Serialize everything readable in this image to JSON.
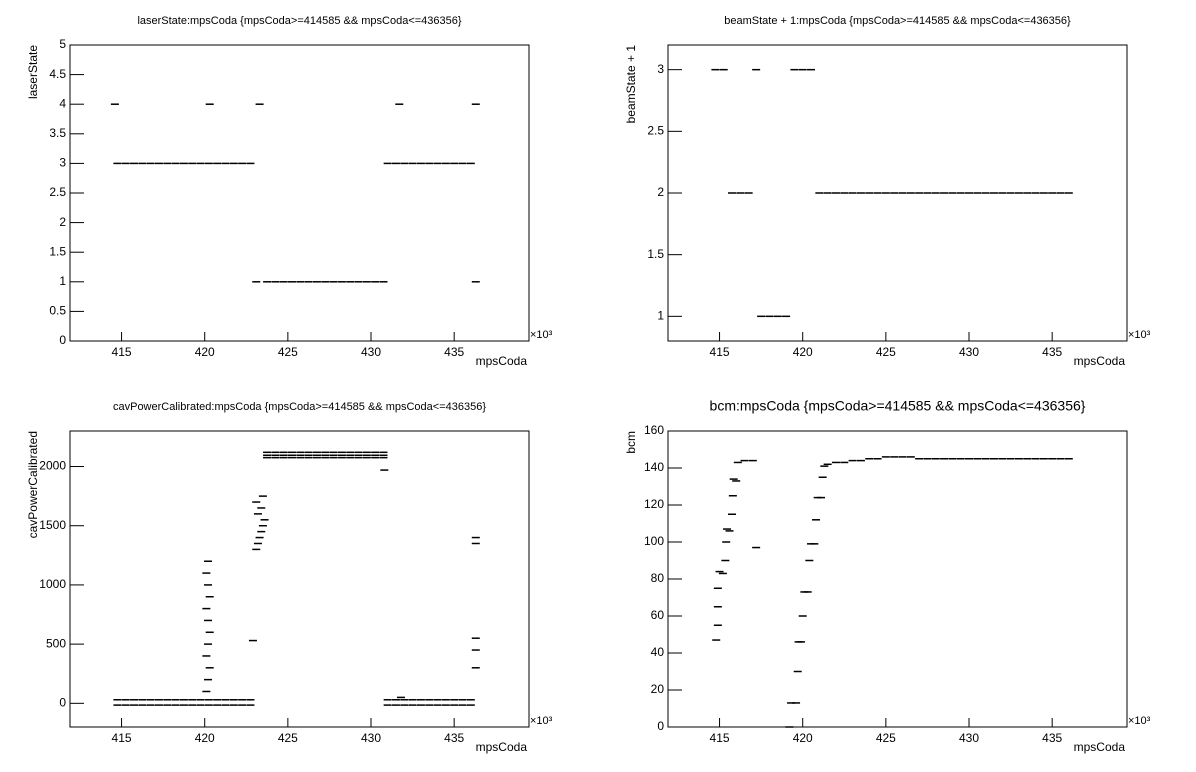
{
  "chart_data": [
    {
      "type": "scatter",
      "title": "laserState:mpsCoda {mpsCoda>=414585 && mpsCoda<=436356}",
      "x_label": "mpsCoda",
      "y_label": "laserState",
      "x_multiplier": "×10³",
      "color": "#000000",
      "xlim": [
        411.9,
        439.5
      ],
      "xticks": [
        415,
        420,
        425,
        430,
        435
      ],
      "ylim": [
        0,
        5
      ],
      "yticks": [
        0,
        0.5,
        1,
        1.5,
        2,
        2.5,
        3,
        3.5,
        4,
        4.5,
        5
      ],
      "x": [
        414.75,
        415.25,
        415.75,
        416.25,
        416.75,
        417.25,
        417.75,
        418.25,
        418.75,
        419.25,
        419.75,
        420.25,
        420.75,
        421.25,
        421.75,
        422.25,
        422.75,
        423.75,
        424.25,
        424.75,
        425.25,
        425.75,
        426.25,
        426.75,
        427.25,
        427.75,
        428.25,
        428.75,
        429.25,
        429.75,
        430.25,
        430.75,
        431,
        431.5,
        432,
        432.5,
        433,
        433.5,
        434,
        434.5,
        435,
        435.5,
        436,
        414.6,
        420.3,
        423.3,
        431.7,
        436.3,
        423.1,
        436.3
      ],
      "values": [
        3,
        3,
        3,
        3,
        3,
        3,
        3,
        3,
        3,
        3,
        3,
        3,
        3,
        3,
        3,
        3,
        3,
        1,
        1,
        1,
        1,
        1,
        1,
        1,
        1,
        1,
        1,
        1,
        1,
        1,
        1,
        1,
        3,
        3,
        3,
        3,
        3,
        3,
        3,
        3,
        3,
        3,
        3,
        4,
        4,
        4,
        4,
        4,
        1,
        1
      ]
    },
    {
      "type": "scatter",
      "title": "beamState + 1:mpsCoda {mpsCoda>=414585 && mpsCoda<=436356}",
      "x_label": "mpsCoda",
      "y_label": "beamState + 1",
      "x_multiplier": "×10³",
      "color": "#000000",
      "xlim": [
        411.9,
        439.5
      ],
      "xticks": [
        415,
        420,
        425,
        430,
        435
      ],
      "ylim": [
        0.8,
        3.2
      ],
      "yticks": [
        1,
        1.5,
        2,
        2.5,
        3
      ],
      "x": [
        414.75,
        415.25,
        417.2,
        419.5,
        420,
        420.5,
        415.75,
        416.25,
        416.75,
        421,
        421.5,
        422,
        422.5,
        423,
        423.5,
        424,
        424.5,
        425,
        425.5,
        426,
        426.5,
        427,
        427.5,
        428,
        428.5,
        429,
        429.5,
        430,
        430.5,
        431,
        431.5,
        432,
        432.5,
        433,
        433.5,
        434,
        434.5,
        435,
        435.5,
        436,
        417.5,
        418,
        418.5,
        419
      ],
      "values": [
        3,
        3,
        3,
        3,
        3,
        3,
        2,
        2,
        2,
        2,
        2,
        2,
        2,
        2,
        2,
        2,
        2,
        2,
        2,
        2,
        2,
        2,
        2,
        2,
        2,
        2,
        2,
        2,
        2,
        2,
        2,
        2,
        2,
        2,
        2,
        2,
        2,
        2,
        2,
        2,
        1,
        1,
        1,
        1
      ]
    },
    {
      "type": "scatter",
      "title": "cavPowerCalibrated:mpsCoda {mpsCoda>=414585 && mpsCoda<=436356}",
      "x_label": "mpsCoda",
      "y_label": "cavPowerCalibrated",
      "x_multiplier": "×10³",
      "color": "#000000",
      "xlim": [
        411.9,
        439.5
      ],
      "xticks": [
        415,
        420,
        425,
        430,
        435
      ],
      "ylim": [
        -200,
        2300
      ],
      "yticks": [
        0,
        500,
        1000,
        1500,
        2000
      ],
      "x": [
        414.75,
        415.25,
        415.75,
        416.25,
        416.75,
        417.25,
        417.75,
        418.25,
        418.75,
        419.25,
        419.75,
        420.25,
        420.75,
        421.25,
        421.75,
        422.25,
        422.75,
        414.75,
        415.25,
        415.75,
        416.25,
        416.75,
        417.25,
        417.75,
        418.25,
        418.75,
        419.25,
        419.75,
        420.25,
        420.75,
        421.25,
        421.75,
        422.25,
        422.75,
        431,
        431.5,
        432,
        432.5,
        433,
        433.5,
        434,
        434.5,
        435,
        435.5,
        436,
        431,
        431.5,
        432,
        432.5,
        433,
        433.5,
        434,
        434.5,
        435,
        435.5,
        436,
        423.75,
        424.25,
        424.75,
        425.25,
        425.75,
        426.25,
        426.75,
        427.25,
        427.75,
        428.25,
        428.75,
        429.25,
        429.75,
        430.25,
        430.75,
        423.75,
        424.25,
        424.75,
        425.25,
        425.75,
        426.25,
        426.75,
        427.25,
        427.75,
        428.25,
        428.75,
        429.25,
        429.75,
        430.25,
        430.75,
        423.75,
        424.25,
        424.75,
        425.25,
        425.75,
        426.25,
        426.75,
        427.25,
        427.75,
        428.25,
        428.75,
        429.25,
        429.75,
        430.25,
        430.75,
        420.1,
        420.2,
        420.3,
        420.1,
        420.2,
        420.3,
        420.2,
        420.1,
        420.3,
        420.2,
        420.1,
        420.2,
        423.1,
        423.2,
        423.3,
        423.4,
        423.5,
        423.6,
        423.2,
        423.4,
        423.1,
        423.5,
        436.3,
        436.3,
        436.3,
        436.3,
        436.3,
        422.9,
        430.8,
        431.8
      ],
      "values": [
        30,
        30,
        30,
        30,
        30,
        30,
        30,
        30,
        30,
        30,
        30,
        30,
        30,
        30,
        30,
        30,
        30,
        -15,
        -15,
        -15,
        -15,
        -15,
        -15,
        -15,
        -15,
        -15,
        -15,
        -15,
        -15,
        -15,
        -15,
        -15,
        -15,
        -15,
        30,
        30,
        30,
        30,
        30,
        30,
        30,
        30,
        30,
        30,
        30,
        -15,
        -15,
        -15,
        -15,
        -15,
        -15,
        -15,
        -15,
        -15,
        -15,
        -15,
        2120,
        2120,
        2120,
        2120,
        2120,
        2120,
        2120,
        2120,
        2120,
        2120,
        2120,
        2120,
        2120,
        2120,
        2120,
        2095,
        2095,
        2095,
        2095,
        2095,
        2095,
        2095,
        2095,
        2095,
        2095,
        2095,
        2095,
        2095,
        2095,
        2095,
        2075,
        2075,
        2075,
        2075,
        2075,
        2075,
        2075,
        2075,
        2075,
        2075,
        2075,
        2075,
        2075,
        2075,
        2075,
        100,
        200,
        300,
        400,
        500,
        600,
        700,
        800,
        900,
        1000,
        1100,
        1200,
        1300,
        1350,
        1400,
        1450,
        1500,
        1550,
        1600,
        1650,
        1700,
        1750,
        300,
        450,
        550,
        1350,
        1400,
        530,
        1970,
        50
      ]
    },
    {
      "type": "scatter",
      "title": "bcm:mpsCoda {mpsCoda>=414585 && mpsCoda<=436356}",
      "x_label": "mpsCoda",
      "y_label": "bcm",
      "x_multiplier": "×10³",
      "color": "#000000",
      "xlim": [
        411.9,
        439.5
      ],
      "xticks": [
        415,
        420,
        425,
        430,
        435
      ],
      "ylim": [
        0,
        160
      ],
      "yticks": [
        0,
        20,
        40,
        60,
        80,
        100,
        120,
        140,
        160
      ],
      "x": [
        414.8,
        414.9,
        414.9,
        414.9,
        415.0,
        415.2,
        415.35,
        415.4,
        415.45,
        415.6,
        415.75,
        415.8,
        415.85,
        416.0,
        416.1,
        416.5,
        417.0,
        417.2,
        419.2,
        419.3,
        419.6,
        419.7,
        419.75,
        419.9,
        420.0,
        420.1,
        420.3,
        420.4,
        420.5,
        420.7,
        420.8,
        420.9,
        421.1,
        421.2,
        421.3,
        421.5,
        422,
        422.5,
        423,
        423.5,
        424,
        424.5,
        425,
        425.5,
        426,
        426.5,
        427,
        427.5,
        428,
        428.5,
        429,
        429.5,
        430,
        430.5,
        431,
        431.5,
        432,
        432.5,
        433,
        433.5,
        434,
        434.5,
        435,
        435.5,
        436
      ],
      "values": [
        47,
        55,
        65,
        75,
        84,
        83,
        90,
        100,
        107,
        106,
        115,
        125,
        134,
        133,
        143,
        144,
        144,
        97,
        0,
        13,
        13,
        30,
        46,
        46,
        60,
        73,
        73,
        90,
        99,
        99,
        112,
        124,
        124,
        135,
        141,
        142,
        143,
        143,
        144,
        144,
        145,
        145,
        146,
        146,
        146,
        146,
        145,
        145,
        145,
        145,
        145,
        145,
        145,
        145,
        145,
        145,
        145,
        145,
        145,
        145,
        145,
        145,
        145,
        145,
        145
      ]
    }
  ]
}
